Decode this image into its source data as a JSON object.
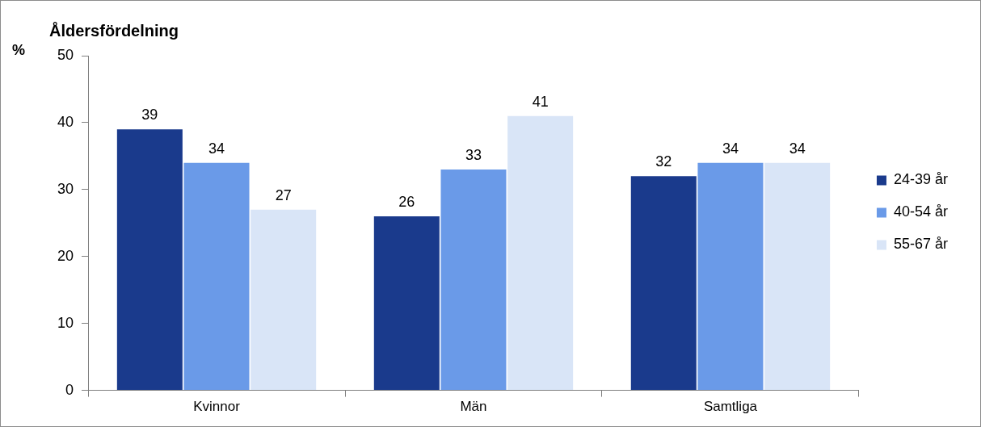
{
  "chart_data": {
    "type": "bar",
    "title": "Åldersfördelning",
    "ylabel": "%",
    "categories": [
      "Kvinnor",
      "Män",
      "Samtliga"
    ],
    "series": [
      {
        "name": "24-39 år",
        "color": "#1a3a8c",
        "values": [
          39,
          26,
          32
        ]
      },
      {
        "name": "40-54 år",
        "color": "#6a9ae8",
        "values": [
          34,
          33,
          34
        ]
      },
      {
        "name": "55-67 år",
        "color": "#d9e5f7",
        "values": [
          27,
          41,
          34
        ]
      }
    ],
    "ylim": [
      0,
      50
    ],
    "yticks": [
      0,
      10,
      20,
      30,
      40,
      50
    ],
    "grid": false,
    "legend": "right",
    "data_labels": true
  }
}
